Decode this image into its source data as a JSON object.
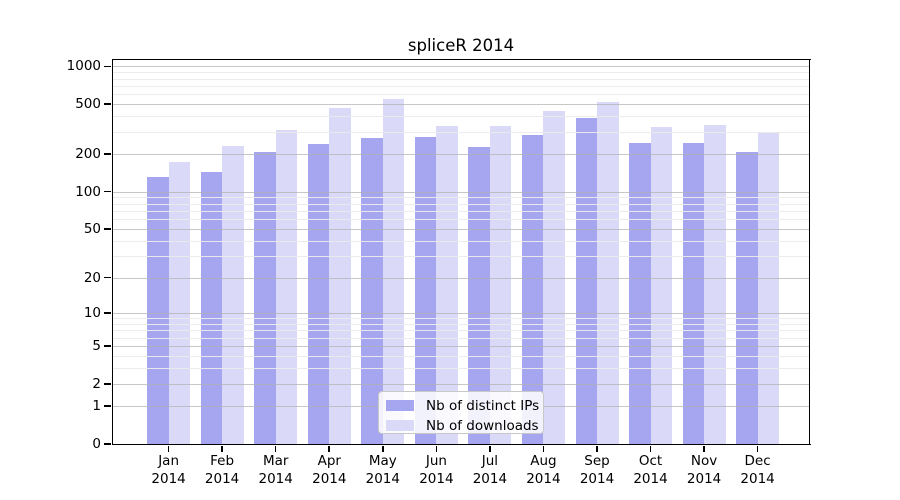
{
  "chart_data": {
    "type": "bar",
    "title": "spliceR 2014",
    "year": "2014",
    "months": [
      "Jan",
      "Feb",
      "Mar",
      "Apr",
      "May",
      "Jun",
      "Jul",
      "Aug",
      "Sep",
      "Oct",
      "Nov",
      "Dec"
    ],
    "categories": [
      "Jan 2014",
      "Feb 2014",
      "Mar 2014",
      "Apr 2014",
      "May 2014",
      "Jun 2014",
      "Jul 2014",
      "Aug 2014",
      "Sep 2014",
      "Oct 2014",
      "Nov 2014",
      "Dec 2014"
    ],
    "series": [
      {
        "name": "Nb of distinct IPs",
        "color": "#a6a6f0",
        "values": [
          131,
          144,
          209,
          240,
          271,
          273,
          230,
          282,
          388,
          245,
          247,
          207
        ]
      },
      {
        "name": "Nb of downloads",
        "color": "#dadaf8",
        "values": [
          172,
          234,
          312,
          468,
          550,
          334,
          334,
          444,
          524,
          331,
          344,
          298
        ]
      }
    ],
    "xlabel": "",
    "ylabel": "",
    "yscale": "log1p",
    "ylim": [
      0,
      1122
    ],
    "y_ticks": [
      0,
      1,
      2,
      5,
      10,
      20,
      50,
      100,
      200,
      500,
      1000
    ],
    "y_minor_ticks": [
      3,
      4,
      6,
      7,
      8,
      9,
      30,
      40,
      60,
      70,
      80,
      90,
      300,
      400,
      600,
      700,
      800,
      900
    ],
    "grid": "horizontal",
    "legend_position": "lower center"
  },
  "legend": {
    "items": [
      {
        "label": "Nb of distinct IPs",
        "color": "#a6a6f0"
      },
      {
        "label": "Nb of downloads",
        "color": "#dadaf8"
      }
    ]
  },
  "colors": {
    "distinct_ips_bar": "#a6a6f0",
    "downloads_bar": "#dadaf8",
    "grid_major": "#c9c9c9",
    "grid_minor": "#ececec",
    "axis": "#000000",
    "background": "#ffffff"
  }
}
